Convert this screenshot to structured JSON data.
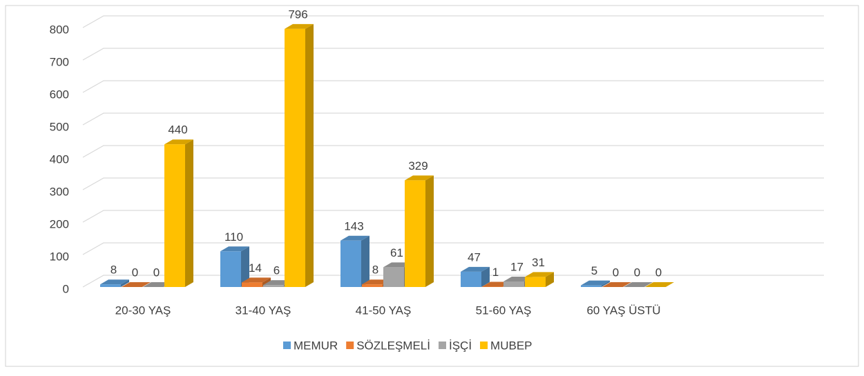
{
  "chart_data": {
    "type": "bar",
    "categories": [
      "20-30 YAŞ",
      "31-40 YAŞ",
      "41-50 YAŞ",
      "51-60 YAŞ",
      "60 YAŞ ÜSTÜ"
    ],
    "series": [
      {
        "name": "MEMUR",
        "color": "#5b9bd5",
        "values": [
          8,
          110,
          143,
          47,
          5
        ]
      },
      {
        "name": "SÖZLEŞMELİ",
        "color": "#ed7d31",
        "values": [
          0,
          14,
          8,
          1,
          0
        ]
      },
      {
        "name": "İŞÇİ",
        "color": "#a5a5a5",
        "values": [
          0,
          6,
          61,
          17,
          0
        ]
      },
      {
        "name": "MUBEP",
        "color": "#ffc000",
        "values": [
          440,
          796,
          329,
          31,
          0
        ]
      }
    ],
    "ylim": [
      0,
      800
    ],
    "yticks": [
      0,
      100,
      200,
      300,
      400,
      500,
      600,
      700,
      800
    ],
    "grid": true,
    "legend": "bottom"
  }
}
